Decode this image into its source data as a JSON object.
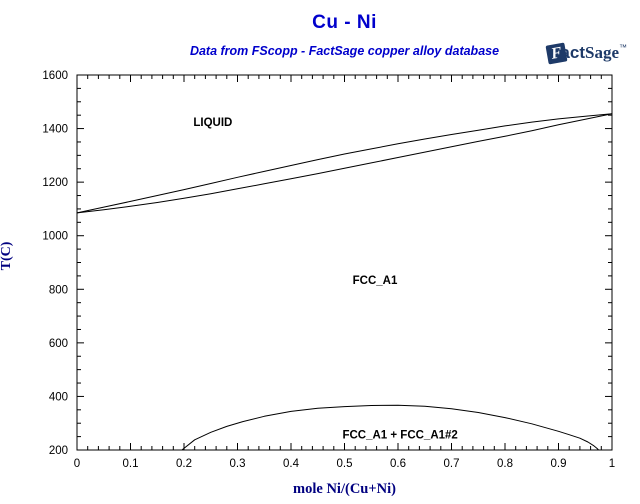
{
  "header": {
    "title": "Cu - Ni",
    "subtitle": "Data from FScopp - FactSage copper alloy database",
    "logo": {
      "f": "F",
      "fact_rest": "act",
      "sage": "Sage",
      "tm": "™"
    }
  },
  "colors": {
    "title_blue": "#0000cc",
    "axis_label_navy": "#000080",
    "logo_navy": "#1e3a68",
    "curve_black": "#000000"
  },
  "chart_data": {
    "type": "line",
    "title": "Cu - Ni",
    "subtitle": "Data from FScopp - FactSage copper alloy database",
    "xlabel": "mole Ni/(Cu+Ni)",
    "ylabel": "T(C)",
    "xlim": [
      0,
      1
    ],
    "ylim": [
      200,
      1600
    ],
    "grid": false,
    "legend": "none",
    "x_major_ticks": [
      0,
      0.1,
      0.2,
      0.3,
      0.4,
      0.5,
      0.6,
      0.7,
      0.8,
      0.9,
      1
    ],
    "x_tick_labels": [
      "0",
      "0.1",
      "0.2",
      "0.3",
      "0.4",
      "0.5",
      "0.6",
      "0.7",
      "0.8",
      "0.9",
      "1"
    ],
    "x_minor_step": 0.02,
    "y_major_ticks": [
      200,
      400,
      600,
      800,
      1000,
      1200,
      1400,
      1600
    ],
    "y_tick_labels": [
      "200",
      "400",
      "600",
      "800",
      "1000",
      "1200",
      "1400",
      "1600"
    ],
    "y_minor_step": 50,
    "series": [
      {
        "name": "liquidus",
        "points": [
          [
            0,
            1085
          ],
          [
            0.05,
            1107
          ],
          [
            0.1,
            1128
          ],
          [
            0.15,
            1150
          ],
          [
            0.2,
            1172
          ],
          [
            0.25,
            1195
          ],
          [
            0.3,
            1218
          ],
          [
            0.35,
            1240
          ],
          [
            0.4,
            1262
          ],
          [
            0.45,
            1284
          ],
          [
            0.5,
            1305
          ],
          [
            0.55,
            1324
          ],
          [
            0.6,
            1343
          ],
          [
            0.65,
            1361
          ],
          [
            0.7,
            1378
          ],
          [
            0.75,
            1394
          ],
          [
            0.8,
            1410
          ],
          [
            0.85,
            1424
          ],
          [
            0.9,
            1436
          ],
          [
            0.95,
            1446
          ],
          [
            1,
            1455
          ]
        ]
      },
      {
        "name": "solidus",
        "points": [
          [
            0,
            1085
          ],
          [
            0.05,
            1097
          ],
          [
            0.1,
            1110
          ],
          [
            0.15,
            1124
          ],
          [
            0.2,
            1140
          ],
          [
            0.25,
            1157
          ],
          [
            0.3,
            1175
          ],
          [
            0.35,
            1194
          ],
          [
            0.4,
            1213
          ],
          [
            0.45,
            1232
          ],
          [
            0.5,
            1252
          ],
          [
            0.55,
            1272
          ],
          [
            0.6,
            1292
          ],
          [
            0.65,
            1312
          ],
          [
            0.7,
            1332
          ],
          [
            0.75,
            1352
          ],
          [
            0.8,
            1371
          ],
          [
            0.85,
            1392
          ],
          [
            0.9,
            1414
          ],
          [
            0.95,
            1435
          ],
          [
            1,
            1455
          ]
        ]
      },
      {
        "name": "miscibility-gap-boundary",
        "points": [
          [
            0.196,
            200
          ],
          [
            0.22,
            238
          ],
          [
            0.25,
            266
          ],
          [
            0.28,
            288
          ],
          [
            0.31,
            306
          ],
          [
            0.35,
            326
          ],
          [
            0.4,
            344
          ],
          [
            0.45,
            356
          ],
          [
            0.5,
            362
          ],
          [
            0.55,
            366
          ],
          [
            0.6,
            367
          ],
          [
            0.65,
            363
          ],
          [
            0.7,
            354
          ],
          [
            0.75,
            340
          ],
          [
            0.8,
            321
          ],
          [
            0.85,
            298
          ],
          [
            0.88,
            281
          ],
          [
            0.9,
            270
          ],
          [
            0.92,
            257
          ],
          [
            0.94,
            244
          ],
          [
            0.955,
            230
          ],
          [
            0.965,
            217
          ],
          [
            0.972,
            206
          ],
          [
            0.975,
            200
          ]
        ]
      }
    ],
    "annotations": [
      {
        "text": "LIQUID",
        "x": 0.254,
        "y": 1424
      },
      {
        "text": "FCC_A1",
        "x": 0.557,
        "y": 835
      },
      {
        "text": "FCC_A1 + FCC_A1#2",
        "x": 0.604,
        "y": 258
      }
    ]
  }
}
